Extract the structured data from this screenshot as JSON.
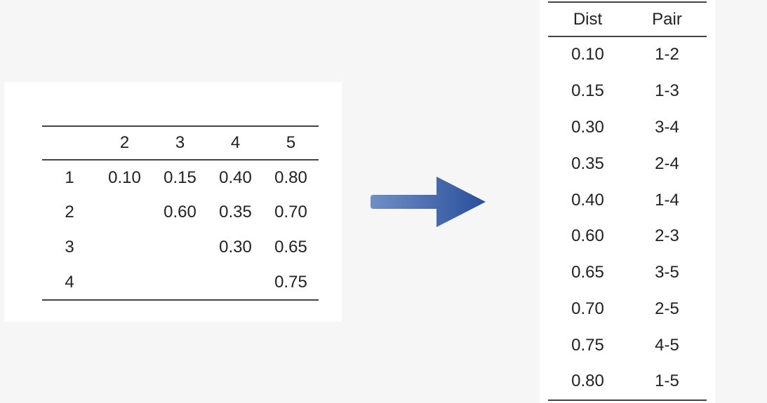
{
  "matrix": {
    "column_headers": [
      "",
      "2",
      "3",
      "4",
      "5"
    ],
    "rows": [
      {
        "label": "1",
        "cells": [
          "0.10",
          "0.15",
          "0.40",
          "0.80"
        ]
      },
      {
        "label": "2",
        "cells": [
          "",
          "0.60",
          "0.35",
          "0.70"
        ]
      },
      {
        "label": "3",
        "cells": [
          "",
          "",
          "0.30",
          "0.65"
        ]
      },
      {
        "label": "4",
        "cells": [
          "",
          "",
          "",
          "0.75"
        ]
      }
    ]
  },
  "arrow": {
    "icon": "right-arrow-icon",
    "color_start": "#6f8fc4",
    "color_end": "#2a4f9c"
  },
  "sorted": {
    "headers": [
      "Dist",
      "Pair"
    ],
    "rows": [
      [
        "0.10",
        "1-2"
      ],
      [
        "0.15",
        "1-3"
      ],
      [
        "0.30",
        "3-4"
      ],
      [
        "0.35",
        "2-4"
      ],
      [
        "0.40",
        "1-4"
      ],
      [
        "0.60",
        "2-3"
      ],
      [
        "0.65",
        "3-5"
      ],
      [
        "0.70",
        "2-5"
      ],
      [
        "0.75",
        "4-5"
      ],
      [
        "0.80",
        "1-5"
      ]
    ]
  }
}
